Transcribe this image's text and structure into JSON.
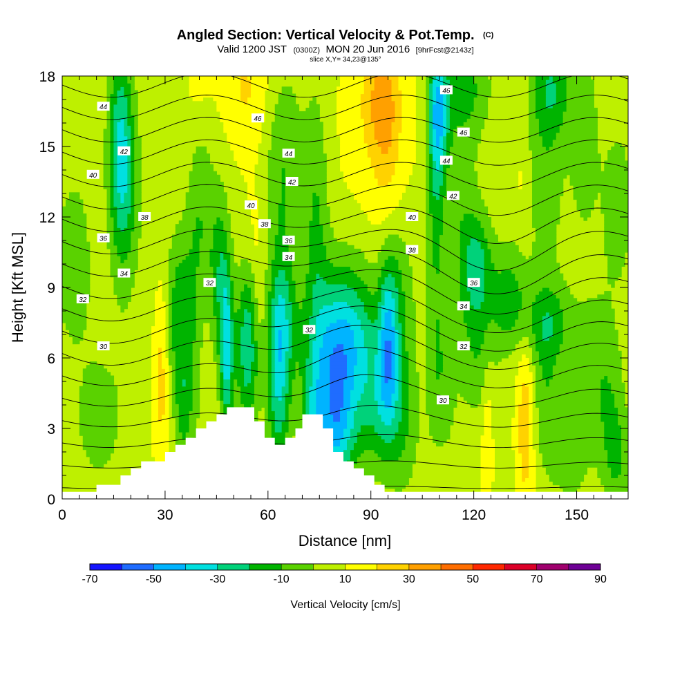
{
  "chart_data": {
    "type": "heatmap",
    "title": "Angled Section: Vertical Velocity & Pot.Temp.",
    "title_units": "(C)",
    "subtitle_parts": {
      "valid": "Valid 1200 JST",
      "zulu": "(0300Z)",
      "date": "MON 20 Jun 2016",
      "forecast": "[9hrFcst@2143z]"
    },
    "slice_label": "slice X,Y= 34,23@135°",
    "xlabel": "Distance [nm]",
    "ylabel": "Height [Kft MSL]",
    "xlim": [
      0,
      165
    ],
    "ylim": [
      0,
      18
    ],
    "x_ticks": [
      0,
      30,
      60,
      90,
      120,
      150
    ],
    "y_ticks": [
      0,
      3,
      6,
      9,
      12,
      15,
      18
    ],
    "grid": false,
    "colorbar": {
      "label": "Vertical Velocity [cm/s]",
      "min": -70,
      "max": 90,
      "step": 10,
      "tick_labels": [
        -70,
        -50,
        -30,
        -10,
        10,
        30,
        50,
        70,
        90
      ],
      "colors": [
        "#1414ff",
        "#1f6cff",
        "#00b4ff",
        "#00e0e0",
        "#00d27a",
        "#00b400",
        "#5ad200",
        "#bef000",
        "#ffff00",
        "#ffd200",
        "#ffa000",
        "#ff6e00",
        "#ff2800",
        "#dc0028",
        "#a0006e",
        "#6e0096"
      ]
    },
    "terrain_profile_kft": [
      [
        0,
        0.3
      ],
      [
        10,
        0.3
      ],
      [
        10,
        0.6
      ],
      [
        17,
        0.6
      ],
      [
        17,
        1.0
      ],
      [
        20,
        1.0
      ],
      [
        20,
        1.3
      ],
      [
        23,
        1.3
      ],
      [
        23,
        1.6
      ],
      [
        30,
        1.6
      ],
      [
        30,
        2.0
      ],
      [
        33,
        2.0
      ],
      [
        33,
        2.3
      ],
      [
        36,
        2.3
      ],
      [
        36,
        2.6
      ],
      [
        39,
        2.6
      ],
      [
        39,
        3.0
      ],
      [
        42,
        3.0
      ],
      [
        42,
        3.3
      ],
      [
        45,
        3.3
      ],
      [
        45,
        3.6
      ],
      [
        48,
        3.6
      ],
      [
        48,
        3.9
      ],
      [
        56,
        3.9
      ],
      [
        56,
        3.3
      ],
      [
        59,
        3.3
      ],
      [
        59,
        2.6
      ],
      [
        62,
        2.6
      ],
      [
        62,
        2.3
      ],
      [
        65,
        2.3
      ],
      [
        65,
        2.6
      ],
      [
        68,
        2.6
      ],
      [
        68,
        3.0
      ],
      [
        70,
        3.0
      ],
      [
        70,
        3.6
      ],
      [
        76,
        3.6
      ],
      [
        76,
        3.0
      ],
      [
        79,
        3.0
      ],
      [
        79,
        2.0
      ],
      [
        82,
        2.0
      ],
      [
        82,
        1.6
      ],
      [
        85,
        1.6
      ],
      [
        85,
        1.3
      ],
      [
        88,
        1.3
      ],
      [
        88,
        1.0
      ],
      [
        91,
        1.0
      ],
      [
        91,
        0.6
      ],
      [
        94,
        0.6
      ],
      [
        94,
        0.3
      ],
      [
        165,
        0.3
      ]
    ],
    "theta_contour_labels": [
      {
        "text": "44",
        "x": 12,
        "y": 16.7
      },
      {
        "text": "42",
        "x": 18,
        "y": 14.8
      },
      {
        "text": "40",
        "x": 9,
        "y": 13.8
      },
      {
        "text": "38",
        "x": 24,
        "y": 12.0
      },
      {
        "text": "36",
        "x": 12,
        "y": 11.1
      },
      {
        "text": "34",
        "x": 18,
        "y": 9.6
      },
      {
        "text": "32",
        "x": 6,
        "y": 8.5
      },
      {
        "text": "30",
        "x": 12,
        "y": 6.5
      },
      {
        "text": "46",
        "x": 57,
        "y": 16.2
      },
      {
        "text": "44",
        "x": 66,
        "y": 14.7
      },
      {
        "text": "42",
        "x": 67,
        "y": 13.5
      },
      {
        "text": "40",
        "x": 55,
        "y": 12.5
      },
      {
        "text": "38",
        "x": 59,
        "y": 11.7
      },
      {
        "text": "36",
        "x": 66,
        "y": 11.0
      },
      {
        "text": "34",
        "x": 66,
        "y": 10.3
      },
      {
        "text": "32",
        "x": 43,
        "y": 9.2
      },
      {
        "text": "32",
        "x": 72,
        "y": 7.2
      },
      {
        "text": "46",
        "x": 112,
        "y": 17.4
      },
      {
        "text": "46",
        "x": 117,
        "y": 15.6
      },
      {
        "text": "44",
        "x": 112,
        "y": 14.4
      },
      {
        "text": "42",
        "x": 114,
        "y": 12.9
      },
      {
        "text": "40",
        "x": 102,
        "y": 12.0
      },
      {
        "text": "38",
        "x": 102,
        "y": 10.6
      },
      {
        "text": "36",
        "x": 120,
        "y": 9.2
      },
      {
        "text": "34",
        "x": 117,
        "y": 8.2
      },
      {
        "text": "32",
        "x": 117,
        "y": 6.5
      },
      {
        "text": "30",
        "x": 111,
        "y": 4.2
      }
    ],
    "velocity_features_cm_s": [
      {
        "x": 1,
        "y": 1.0,
        "sx": 7,
        "sy": 1.0,
        "v": 10
      },
      {
        "x": 14,
        "y": 5,
        "sx": 8,
        "sy": 3,
        "v": 4
      },
      {
        "x": 3,
        "y": 10,
        "sx": 4,
        "sy": 2.5,
        "v": -6
      },
      {
        "x": 20,
        "y": 9.5,
        "sx": 3,
        "sy": 1.5,
        "v": 10
      },
      {
        "x": 26,
        "y": 8.3,
        "sx": 4,
        "sy": 3,
        "v": 6
      },
      {
        "x": 29,
        "y": 5.2,
        "sx": 1.8,
        "sy": 2.6,
        "v": 26
      },
      {
        "x": 32,
        "y": 6.5,
        "sx": 1.6,
        "sy": 2,
        "v": -4
      },
      {
        "x": 35,
        "y": 4.5,
        "sx": 1.6,
        "sy": 2.2,
        "v": -14
      },
      {
        "x": 38,
        "y": 5.5,
        "sx": 1.8,
        "sy": 3,
        "v": -6
      },
      {
        "x": 42,
        "y": 4.6,
        "sx": 1.6,
        "sy": 1.5,
        "v": 10
      },
      {
        "x": 34,
        "y": 13.5,
        "sx": 4,
        "sy": 3,
        "v": 12
      },
      {
        "x": 34,
        "y": 9.5,
        "sx": 2.5,
        "sy": 2,
        "v": -8
      },
      {
        "x": 40,
        "y": 12,
        "sx": 3,
        "sy": 3,
        "v": -10
      },
      {
        "x": 48,
        "y": 6.2,
        "sx": 1.4,
        "sy": 2.4,
        "v": -32
      },
      {
        "x": 46,
        "y": 9.5,
        "sx": 2,
        "sy": 2.5,
        "v": -16
      },
      {
        "x": 54,
        "y": 6.5,
        "sx": 2.4,
        "sy": 2.4,
        "v": -28
      },
      {
        "x": 57,
        "y": 8.5,
        "sx": 1.2,
        "sy": 1.6,
        "v": 15
      },
      {
        "x": 59,
        "y": 5.5,
        "sx": 1.6,
        "sy": 2.5,
        "v": 10
      },
      {
        "x": 63,
        "y": 5.2,
        "sx": 2.4,
        "sy": 3.2,
        "v": -28
      },
      {
        "x": 65,
        "y": 7.5,
        "sx": 3,
        "sy": 2,
        "v": -12
      },
      {
        "x": 71,
        "y": 6.5,
        "sx": 2,
        "sy": 2.5,
        "v": 4
      },
      {
        "x": 74,
        "y": 11,
        "sx": 2.5,
        "sy": 4,
        "v": -10
      },
      {
        "x": 73,
        "y": 3,
        "sx": 2,
        "sy": 1.6,
        "v": -10
      },
      {
        "x": 79,
        "y": 5.6,
        "sx": 5,
        "sy": 2.6,
        "v": -40
      },
      {
        "x": 80,
        "y": 2.5,
        "sx": 4,
        "sy": 1.6,
        "v": -18
      },
      {
        "x": 86,
        "y": 7,
        "sx": 5,
        "sy": 2.2,
        "v": -18
      },
      {
        "x": 95,
        "y": 6.5,
        "sx": 2,
        "sy": 2.5,
        "v": -32
      },
      {
        "x": 92,
        "y": 4,
        "sx": 4,
        "sy": 2,
        "v": -16
      },
      {
        "x": 99,
        "y": 4,
        "sx": 2.5,
        "sy": 2.5,
        "v": -10
      },
      {
        "x": 103,
        "y": 6.5,
        "sx": 2.5,
        "sy": 2.5,
        "v": 6
      },
      {
        "x": 64,
        "y": 14,
        "sx": 4,
        "sy": 3,
        "v": -10
      },
      {
        "x": 72,
        "y": 16,
        "sx": 5,
        "sy": 3,
        "v": 6
      },
      {
        "x": 53,
        "y": 17.5,
        "sx": 5,
        "sy": 1.6,
        "v": 20
      },
      {
        "x": 58,
        "y": 14,
        "sx": 4,
        "sy": 3,
        "v": 12
      },
      {
        "x": 56,
        "y": 11,
        "sx": 2,
        "sy": 1.5,
        "v": 12
      },
      {
        "x": 40,
        "y": 17.5,
        "sx": 2.5,
        "sy": 1.5,
        "v": 14
      },
      {
        "x": 72,
        "y": 8.5,
        "sx": 1.2,
        "sy": 2,
        "v": 10
      },
      {
        "x": 17,
        "y": 15,
        "sx": 2.5,
        "sy": 3,
        "v": -28
      },
      {
        "x": 19,
        "y": 12.5,
        "sx": 3,
        "sy": 3,
        "v": -6
      },
      {
        "x": 28,
        "y": 16,
        "sx": 3,
        "sy": 2.5,
        "v": 6
      },
      {
        "x": 5,
        "y": 15,
        "sx": 4,
        "sy": 3,
        "v": 6
      },
      {
        "x": 93,
        "y": 17,
        "sx": 4,
        "sy": 2,
        "v": 32
      },
      {
        "x": 95,
        "y": 14.5,
        "sx": 3,
        "sy": 2.5,
        "v": 18
      },
      {
        "x": 90,
        "y": 12.5,
        "sx": 3,
        "sy": 2,
        "v": 10
      },
      {
        "x": 98,
        "y": 9,
        "sx": 3,
        "sy": 2,
        "v": -6
      },
      {
        "x": 84,
        "y": 16,
        "sx": 4,
        "sy": 3,
        "v": 12
      },
      {
        "x": 109,
        "y": 14.5,
        "sx": 1.8,
        "sy": 4,
        "v": -16
      },
      {
        "x": 110,
        "y": 16.5,
        "sx": 2.2,
        "sy": 1.8,
        "v": -24
      },
      {
        "x": 104,
        "y": 15.5,
        "sx": 2.5,
        "sy": 3,
        "v": 10
      },
      {
        "x": 116,
        "y": 11.5,
        "sx": 4,
        "sy": 4,
        "v": -6
      },
      {
        "x": 118,
        "y": 17.5,
        "sx": 5,
        "sy": 1.5,
        "v": -10
      },
      {
        "x": 134,
        "y": 13.5,
        "sx": 1.3,
        "sy": 1.5,
        "v": 14
      },
      {
        "x": 131,
        "y": 11,
        "sx": 3,
        "sy": 3,
        "v": 6
      },
      {
        "x": 141,
        "y": 14.5,
        "sx": 4,
        "sy": 4,
        "v": -6
      },
      {
        "x": 152,
        "y": 15.5,
        "sx": 3,
        "sy": 3,
        "v": -6
      },
      {
        "x": 146,
        "y": 11.5,
        "sx": 2.5,
        "sy": 2,
        "v": 8
      },
      {
        "x": 143,
        "y": 17.5,
        "sx": 4,
        "sy": 1.5,
        "v": -12
      },
      {
        "x": 162,
        "y": 12.5,
        "sx": 4,
        "sy": 3,
        "v": -4
      },
      {
        "x": 121,
        "y": 10,
        "sx": 3,
        "sy": 1.5,
        "v": -18
      },
      {
        "x": 130,
        "y": 8.5,
        "sx": 4,
        "sy": 1.5,
        "v": -14
      },
      {
        "x": 142,
        "y": 7.5,
        "sx": 5,
        "sy": 1.2,
        "v": -12
      },
      {
        "x": 112,
        "y": 9,
        "sx": 2,
        "sy": 3,
        "v": 12
      },
      {
        "x": 107,
        "y": 10,
        "sx": 3,
        "sy": 3,
        "v": 6
      },
      {
        "x": 121,
        "y": 6.5,
        "sx": 3,
        "sy": 2,
        "v": -6
      },
      {
        "x": 110,
        "y": 5.5,
        "sx": 2.5,
        "sy": 2.5,
        "v": -8
      },
      {
        "x": 126,
        "y": 3.5,
        "sx": 3,
        "sy": 3,
        "v": 4
      },
      {
        "x": 124,
        "y": 2.5,
        "sx": 1.2,
        "sy": 2.2,
        "v": 22
      },
      {
        "x": 115,
        "y": 2.5,
        "sx": 2.5,
        "sy": 2,
        "v": 4
      },
      {
        "x": 135,
        "y": 3.2,
        "sx": 1.8,
        "sy": 2.6,
        "v": 28
      },
      {
        "x": 141,
        "y": 4.5,
        "sx": 3,
        "sy": 2.5,
        "v": -6
      },
      {
        "x": 148,
        "y": 2.5,
        "sx": 4,
        "sy": 2,
        "v": -6
      },
      {
        "x": 155,
        "y": 5.5,
        "sx": 4,
        "sy": 2.5,
        "v": -4
      },
      {
        "x": 162,
        "y": 1.5,
        "sx": 3,
        "sy": 1.5,
        "v": -8
      },
      {
        "x": 160,
        "y": 4,
        "sx": 3,
        "sy": 2,
        "v": -4
      },
      {
        "x": 104,
        "y": 2.5,
        "sx": 3,
        "sy": 2,
        "v": 4
      },
      {
        "x": 10,
        "y": 3,
        "sx": 5,
        "sy": 2,
        "v": -2
      }
    ]
  }
}
